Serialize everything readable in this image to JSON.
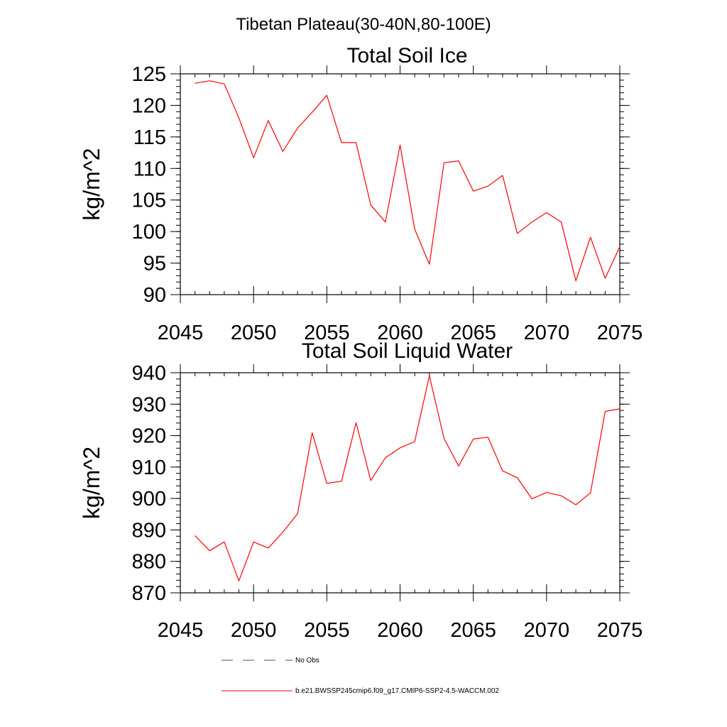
{
  "figure": {
    "suptitle": "Tibetan Plateau(30-40N,80-100E)"
  },
  "chart_data": [
    {
      "type": "line",
      "title": "Total Soil Ice",
      "xlabel": "",
      "ylabel": "kg/m^2",
      "xlim": [
        2045,
        2075
      ],
      "ylim": [
        90,
        125
      ],
      "xticks": [
        2045,
        2050,
        2055,
        2060,
        2065,
        2070,
        2075
      ],
      "xtick_labels": [
        "2045",
        "2050",
        "2055",
        "2060",
        "2065",
        "2070",
        "2075"
      ],
      "yticks": [
        90,
        95,
        100,
        105,
        110,
        115,
        120,
        125
      ],
      "ytick_labels": [
        "90",
        "95",
        "100",
        "105",
        "110",
        "115",
        "120",
        "125"
      ],
      "grid": false,
      "series": [
        {
          "color": "#ff0000",
          "x": [
            2046,
            2047,
            2048,
            2049,
            2050,
            2051,
            2052,
            2053,
            2054,
            2055,
            2056,
            2057,
            2058,
            2059,
            2060,
            2061,
            2062,
            2063,
            2064,
            2065,
            2066,
            2067,
            2068,
            2069,
            2070,
            2071,
            2072,
            2073,
            2074,
            2075
          ],
          "values": [
            123.5,
            123.9,
            123.4,
            118.0,
            111.7,
            117.6,
            112.7,
            116.4,
            118.9,
            121.6,
            114.1,
            114.1,
            104.2,
            101.5,
            113.7,
            100.4,
            94.8,
            110.9,
            111.2,
            106.4,
            107.2,
            108.9,
            99.7,
            101.5,
            103.0,
            101.5,
            92.2,
            99.1,
            92.6,
            97.6
          ]
        }
      ]
    },
    {
      "type": "line",
      "title": "Total Soil Liquid Water",
      "xlabel": "",
      "ylabel": "kg/m^2",
      "xlim": [
        2045,
        2075
      ],
      "ylim": [
        870,
        940
      ],
      "xticks": [
        2045,
        2050,
        2055,
        2060,
        2065,
        2070,
        2075
      ],
      "xtick_labels": [
        "2045",
        "2050",
        "2055",
        "2060",
        "2065",
        "2070",
        "2075"
      ],
      "yticks": [
        870,
        880,
        890,
        900,
        910,
        920,
        930,
        940
      ],
      "ytick_labels": [
        "870",
        "880",
        "890",
        "900",
        "910",
        "920",
        "930",
        "940"
      ],
      "grid": false,
      "series": [
        {
          "color": "#ff0000",
          "x": [
            2046,
            2047,
            2048,
            2049,
            2050,
            2051,
            2052,
            2053,
            2054,
            2055,
            2056,
            2057,
            2058,
            2059,
            2060,
            2061,
            2062,
            2063,
            2064,
            2065,
            2066,
            2067,
            2068,
            2069,
            2070,
            2071,
            2072,
            2073,
            2074,
            2075
          ],
          "values": [
            888.2,
            883.4,
            886.2,
            873.8,
            886.2,
            884.2,
            889.3,
            895.1,
            920.9,
            904.8,
            905.5,
            924.1,
            905.7,
            913.0,
            916.1,
            918.1,
            939.0,
            919.1,
            910.3,
            918.9,
            919.5,
            908.8,
            906.6,
            899.9,
            901.9,
            900.9,
            898.0,
            901.8,
            927.7,
            928.5
          ]
        }
      ]
    }
  ],
  "legend": {
    "placement": "bottom",
    "entries": [
      {
        "label": "No Obs",
        "color": "#4a4a8a",
        "style": "dashed"
      },
      {
        "label": "b.e21.BWSSP245cmip6.f09_g17.CMIP6-SSP2-4.5-WACCM.002",
        "color": "#ff0000",
        "style": "solid"
      }
    ]
  }
}
